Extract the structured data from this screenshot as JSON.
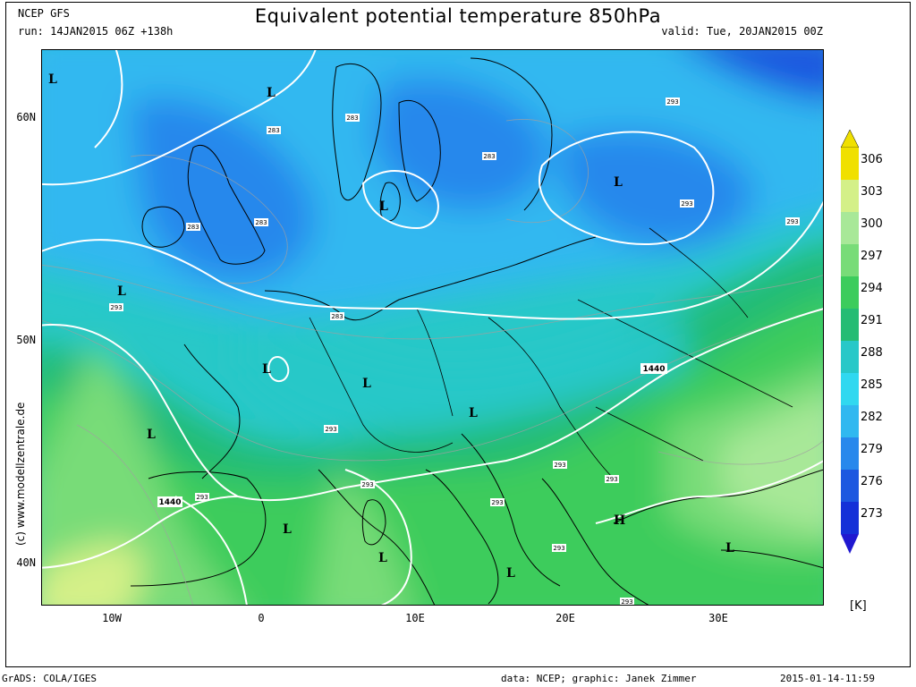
{
  "header": {
    "model": "NCEP GFS",
    "title": "Equivalent potential temperature 850hPa",
    "run": "run: 14JAN2015 06Z +138h",
    "valid": "valid: Tue, 20JAN2015 00Z"
  },
  "axes": {
    "latitude_labels": [
      "60N",
      "50N",
      "40N"
    ],
    "longitude_labels": [
      "10W",
      "0",
      "10E",
      "20E",
      "30E"
    ]
  },
  "side_credit": "(c) www.modellzentrale.de",
  "colorbar": {
    "levels": [
      "306",
      "303",
      "300",
      "297",
      "294",
      "291",
      "288",
      "285",
      "282",
      "279",
      "276",
      "273"
    ],
    "colors": [
      "#f0e000",
      "#d4f088",
      "#a8e898",
      "#78dc78",
      "#3ccc5c",
      "#24bc74",
      "#28c8c8",
      "#30d8f0",
      "#30b8f0",
      "#2888ec",
      "#1c58e0",
      "#1430d8"
    ],
    "unit": "[K]"
  },
  "map": {
    "field_colors": {
      "deep_blue": "#1c58e0",
      "blue": "#2888ec",
      "light_blue": "#30b8f0",
      "cyan": "#30d8f0",
      "teal": "#28c8c8",
      "green": "#24bc74",
      "mid_green": "#3ccc5c",
      "light_green": "#78dc78",
      "pale_green": "#a8e898",
      "yellow_green": "#d4f088",
      "yellow": "#f0e000"
    },
    "low_markers": [
      "L",
      "L",
      "L",
      "L",
      "L",
      "L",
      "L",
      "L",
      "L",
      "L",
      "L",
      "L",
      "L"
    ],
    "high_marker": "H",
    "contour_labels": [
      "283",
      "283",
      "283",
      "283",
      "283",
      "283",
      "293",
      "293",
      "293",
      "293",
      "293",
      "293",
      "293",
      "293",
      "293",
      "293",
      "293",
      "293"
    ],
    "geopotential_labels": [
      "1440",
      "1440"
    ]
  },
  "footer": {
    "left": "GrADS: COLA/IGES",
    "data_credit": "data: NCEP; graphic: Janek Zimmer",
    "timestamp": "2015-01-14-11:59"
  }
}
